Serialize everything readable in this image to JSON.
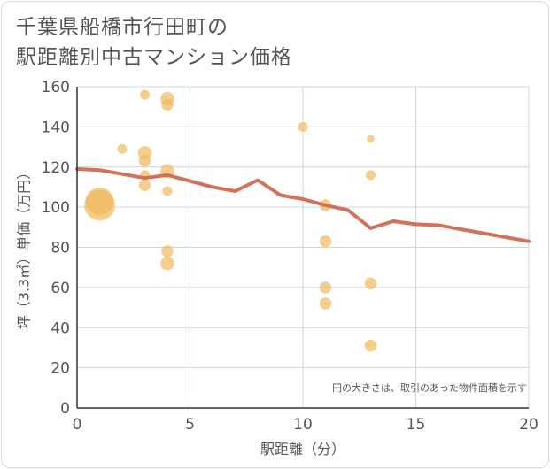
{
  "title": {
    "line1": "千葉県船橋市行田町の",
    "line2": "駅距離別中古マンション価格"
  },
  "chart_data": {
    "type": "scatter",
    "title": "千葉県船橋市行田町の駅距離別中古マンション価格",
    "xlabel": "駅距離（分）",
    "ylabel": "坪（3.3㎡）単価（万円）",
    "xlim": [
      0,
      20
    ],
    "ylim": [
      0,
      160
    ],
    "xticks": [
      0,
      5,
      10,
      15,
      20
    ],
    "yticks": [
      0,
      20,
      40,
      60,
      80,
      100,
      120,
      140,
      160
    ],
    "grid": true,
    "note": "円の大きさは、取引のあった物件面積を示す",
    "colors": {
      "bubble": "#f0b95c",
      "line": "#d06a52",
      "grid": "#c9d6e3",
      "axis": "#333333"
    },
    "points": [
      {
        "x": 1,
        "y": 103,
        "size": 8
      },
      {
        "x": 1,
        "y": 101,
        "size": 10
      },
      {
        "x": 2,
        "y": 129,
        "size": 1
      },
      {
        "x": 3,
        "y": 156,
        "size": 1
      },
      {
        "x": 3,
        "y": 127,
        "size": 2
      },
      {
        "x": 3,
        "y": 123,
        "size": 1.5
      },
      {
        "x": 3,
        "y": 111,
        "size": 1.5
      },
      {
        "x": 3,
        "y": 116,
        "size": 1
      },
      {
        "x": 4,
        "y": 154,
        "size": 2
      },
      {
        "x": 4,
        "y": 151,
        "size": 1.5
      },
      {
        "x": 4,
        "y": 118,
        "size": 2
      },
      {
        "x": 4,
        "y": 108,
        "size": 1
      },
      {
        "x": 4,
        "y": 78,
        "size": 1.5
      },
      {
        "x": 4,
        "y": 72,
        "size": 2
      },
      {
        "x": 10,
        "y": 140,
        "size": 1
      },
      {
        "x": 11,
        "y": 101,
        "size": 1.5
      },
      {
        "x": 11,
        "y": 83,
        "size": 1.5
      },
      {
        "x": 11,
        "y": 60,
        "size": 1.5
      },
      {
        "x": 11,
        "y": 52,
        "size": 1.5
      },
      {
        "x": 13,
        "y": 134,
        "size": 0.6
      },
      {
        "x": 13,
        "y": 116,
        "size": 1
      },
      {
        "x": 13,
        "y": 62,
        "size": 1.5
      },
      {
        "x": 13,
        "y": 31,
        "size": 1.5
      }
    ],
    "trend": {
      "x": [
        0,
        1,
        2,
        3,
        4,
        5,
        6,
        7,
        8,
        9,
        10,
        11,
        12,
        13,
        14,
        15,
        16,
        17,
        18,
        19,
        20
      ],
      "y": [
        119,
        118.5,
        116.5,
        114.5,
        116,
        113,
        110,
        108,
        113.5,
        106,
        104,
        101,
        98.5,
        89.5,
        93,
        91.5,
        91,
        89,
        87,
        85,
        83
      ]
    }
  }
}
